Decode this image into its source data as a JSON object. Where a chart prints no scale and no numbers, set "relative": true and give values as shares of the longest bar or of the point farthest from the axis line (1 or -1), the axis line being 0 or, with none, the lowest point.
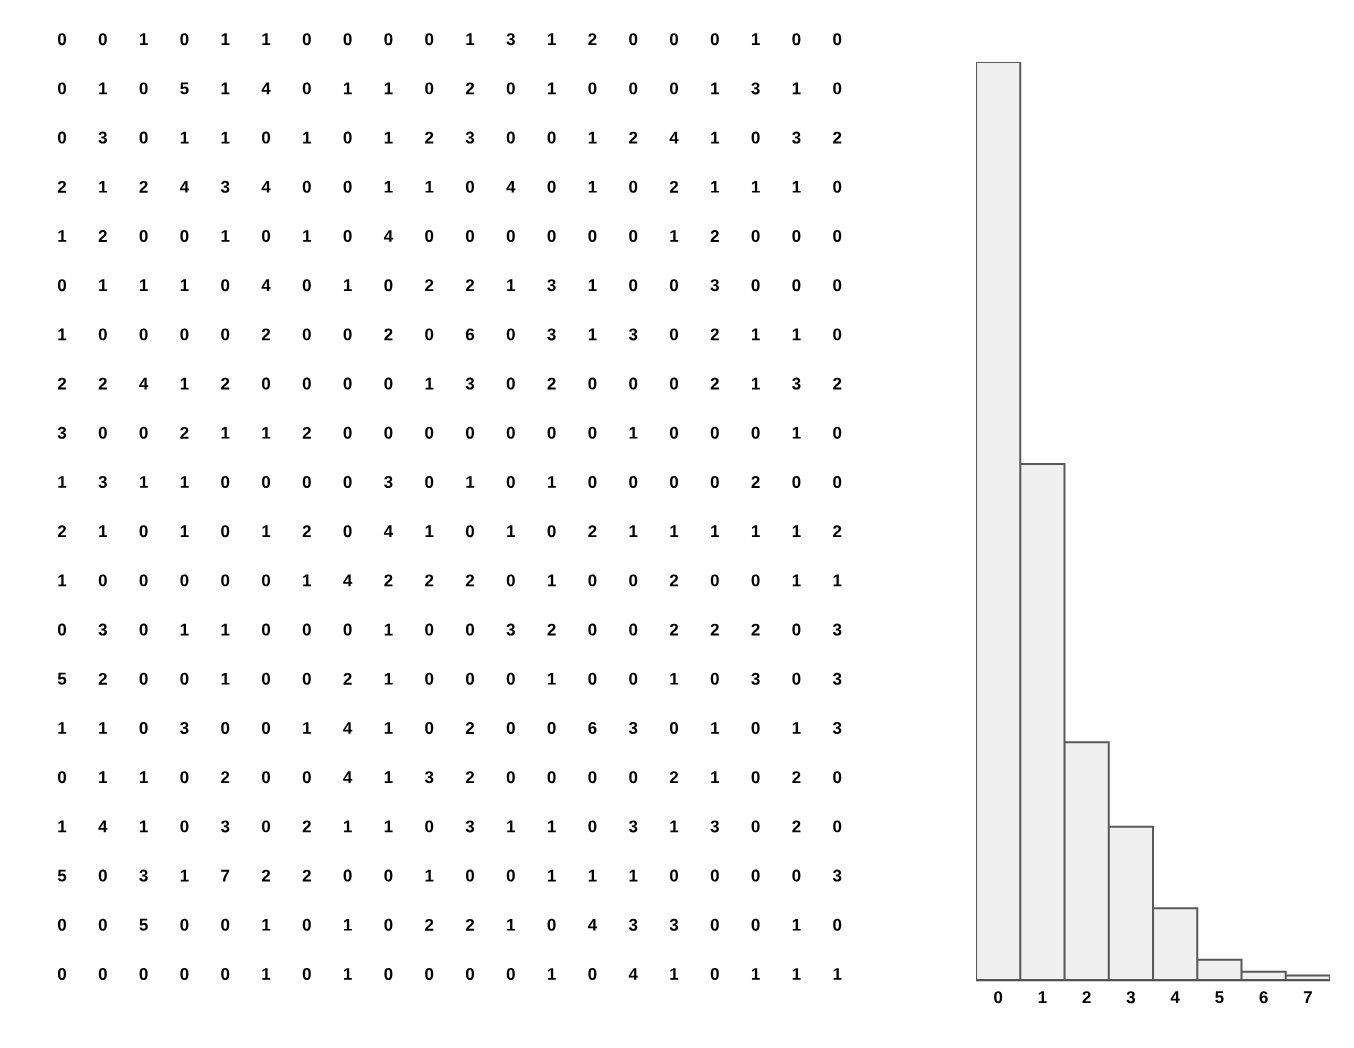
{
  "chart_data": [
    {
      "type": "heatmap",
      "data_labels": true,
      "categories": [
        null,
        null,
        null,
        null,
        null,
        null,
        null,
        null,
        null,
        null,
        null,
        null,
        null,
        null,
        null,
        null,
        null,
        null,
        null,
        null
      ],
      "y_categories": [
        null,
        null,
        null,
        null,
        null,
        null,
        null,
        null,
        null,
        null,
        null,
        null,
        null,
        null,
        null,
        null,
        null,
        null,
        null,
        null
      ],
      "cells": [
        [
          0,
          0,
          1,
          0,
          1,
          1,
          0,
          0,
          0,
          0,
          1,
          3,
          1,
          2,
          0,
          0,
          0,
          1,
          0,
          0
        ],
        [
          0,
          1,
          0,
          5,
          1,
          4,
          0,
          1,
          1,
          0,
          2,
          0,
          1,
          0,
          0,
          0,
          1,
          3,
          1,
          0
        ],
        [
          0,
          3,
          0,
          1,
          1,
          0,
          1,
          0,
          1,
          2,
          3,
          0,
          0,
          1,
          2,
          4,
          1,
          0,
          3,
          2
        ],
        [
          2,
          1,
          2,
          4,
          3,
          4,
          0,
          0,
          1,
          1,
          0,
          4,
          0,
          1,
          0,
          2,
          1,
          1,
          1,
          0
        ],
        [
          1,
          2,
          0,
          0,
          1,
          0,
          1,
          0,
          4,
          0,
          0,
          0,
          0,
          0,
          0,
          1,
          2,
          0,
          0,
          0
        ],
        [
          0,
          1,
          1,
          1,
          0,
          4,
          0,
          1,
          0,
          2,
          2,
          1,
          3,
          1,
          0,
          0,
          3,
          0,
          0,
          0
        ],
        [
          1,
          0,
          0,
          0,
          0,
          2,
          0,
          0,
          2,
          0,
          6,
          0,
          3,
          1,
          3,
          0,
          2,
          1,
          1,
          0
        ],
        [
          2,
          2,
          4,
          1,
          2,
          0,
          0,
          0,
          0,
          1,
          3,
          0,
          2,
          0,
          0,
          0,
          2,
          1,
          3,
          2
        ],
        [
          3,
          0,
          0,
          2,
          1,
          1,
          2,
          0,
          0,
          0,
          0,
          0,
          0,
          0,
          1,
          0,
          0,
          0,
          1,
          0
        ],
        [
          1,
          3,
          1,
          1,
          0,
          0,
          0,
          0,
          3,
          0,
          1,
          0,
          1,
          0,
          0,
          0,
          0,
          2,
          0,
          0
        ],
        [
          2,
          1,
          0,
          1,
          0,
          1,
          2,
          0,
          4,
          1,
          0,
          1,
          0,
          2,
          1,
          1,
          1,
          1,
          1,
          2
        ],
        [
          1,
          0,
          0,
          0,
          0,
          0,
          1,
          4,
          2,
          2,
          2,
          0,
          1,
          0,
          0,
          2,
          0,
          0,
          1,
          1
        ],
        [
          0,
          3,
          0,
          1,
          1,
          0,
          0,
          0,
          1,
          0,
          0,
          3,
          2,
          0,
          0,
          2,
          2,
          2,
          0,
          3
        ],
        [
          5,
          2,
          0,
          0,
          1,
          0,
          0,
          2,
          1,
          0,
          0,
          0,
          1,
          0,
          0,
          1,
          0,
          3,
          0,
          3
        ],
        [
          1,
          1,
          0,
          3,
          0,
          0,
          1,
          4,
          1,
          0,
          2,
          0,
          0,
          6,
          3,
          0,
          1,
          0,
          1,
          3
        ],
        [
          0,
          1,
          1,
          0,
          2,
          0,
          0,
          4,
          1,
          3,
          2,
          0,
          0,
          0,
          0,
          2,
          1,
          0,
          2,
          0
        ],
        [
          1,
          4,
          1,
          0,
          3,
          0,
          2,
          1,
          1,
          0,
          3,
          1,
          1,
          0,
          3,
          1,
          3,
          0,
          2,
          0
        ],
        [
          5,
          0,
          3,
          1,
          7,
          2,
          2,
          0,
          0,
          1,
          0,
          0,
          1,
          1,
          1,
          0,
          0,
          0,
          0,
          3
        ],
        [
          0,
          0,
          5,
          0,
          0,
          1,
          0,
          1,
          0,
          2,
          2,
          1,
          0,
          4,
          3,
          3,
          0,
          0,
          1,
          0
        ],
        [
          0,
          0,
          0,
          0,
          0,
          1,
          0,
          1,
          0,
          0,
          0,
          0,
          1,
          0,
          4,
          1,
          0,
          1,
          1,
          1
        ]
      ]
    },
    {
      "type": "bar",
      "relative": true,
      "categories": [
        "0",
        "1",
        "2",
        "3",
        "4",
        "5",
        "6",
        "7"
      ],
      "values": [
        1,
        0.562,
        0.259,
        0.167,
        0.078,
        0.022,
        0.009,
        0.005
      ],
      "color": "#f0f0f0"
    }
  ]
}
